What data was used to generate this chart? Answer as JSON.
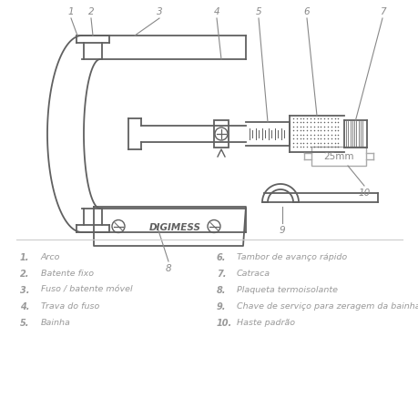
{
  "bg_color": "#ffffff",
  "line_color": "#606060",
  "legend_color": "#999999",
  "callout_color": "#888888",
  "legend_left": [
    [
      "1.",
      "Arco"
    ],
    [
      "2.",
      "Batente fixo"
    ],
    [
      "3.",
      "Fuso / batente móvel"
    ],
    [
      "4.",
      "Trava do fuso"
    ],
    [
      "5.",
      "Bainha"
    ]
  ],
  "legend_right": [
    [
      "6.",
      "Tambor de avanço rápido"
    ],
    [
      "7.",
      "Catraca"
    ],
    [
      "8.",
      "Plaqueta termoisolante"
    ],
    [
      "9.",
      "Chave de serviço para zeragem da bainha"
    ],
    [
      "10.",
      "Haste padrão"
    ]
  ],
  "digimess_text": "DIGIMESS",
  "size_label": "25mm"
}
